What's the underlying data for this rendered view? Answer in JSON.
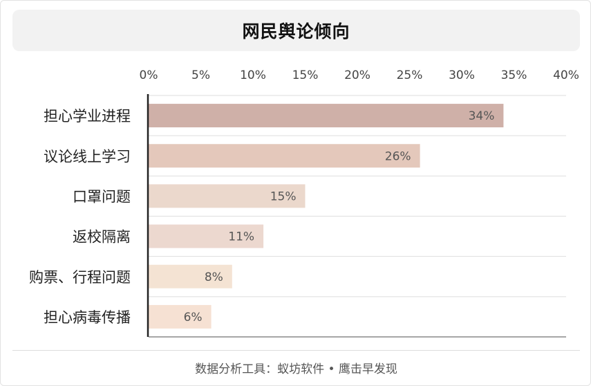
{
  "title": "网民舆论倾向",
  "footer": "数据分析工具：蚁坊软件 • 鹰击早发现",
  "chart_data": {
    "type": "bar",
    "orientation": "horizontal",
    "categories": [
      "担心学业进程",
      "议论线上学习",
      "口罩问题",
      "返校隔离",
      "购票、行程问题",
      "担心病毒传播"
    ],
    "values": [
      34,
      26,
      15,
      11,
      8,
      6
    ],
    "value_labels": [
      "34%",
      "26%",
      "15%",
      "11%",
      "8%",
      "6%"
    ],
    "colors": [
      "#cfb0a8",
      "#e4c8bb",
      "#ebd8cc",
      "#ecd8cf",
      "#f4e3d3",
      "#f6e1d3"
    ],
    "xlim": [
      0,
      40
    ],
    "xticks": [
      0,
      5,
      10,
      15,
      20,
      25,
      30,
      35,
      40
    ],
    "xtick_labels": [
      "0%",
      "5%",
      "10%",
      "15%",
      "20%",
      "25%",
      "30%",
      "35%",
      "40%"
    ],
    "xaxis_position": "top",
    "grid": true
  }
}
